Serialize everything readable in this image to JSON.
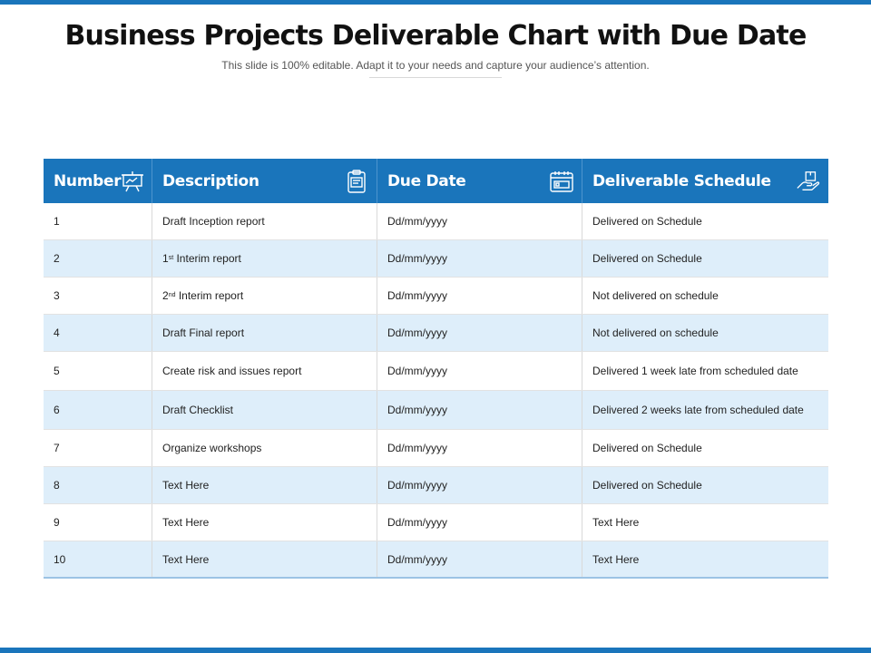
{
  "title": "Business Projects Deliverable Chart with Due Date",
  "subtitle": "This slide is 100% editable. Adapt it to your needs and capture your audience’s attention.",
  "colors": {
    "accent": "#1a75bb",
    "alt_row": "#deeefa"
  },
  "table": {
    "headers": [
      {
        "label": "Number",
        "icon": "presentation-board-icon"
      },
      {
        "label": "Description",
        "icon": "clipboard-icon"
      },
      {
        "label": "Due Date",
        "icon": "calendar-icon"
      },
      {
        "label": "Deliverable  Schedule",
        "icon": "delivery-hand-icon"
      }
    ],
    "rows": [
      {
        "number": "1",
        "description": "Draft Inception report",
        "due_date": "Dd/mm/yyyy",
        "schedule": "Delivered on Schedule"
      },
      {
        "number": "2",
        "desc_pre": "1",
        "desc_sup": "st",
        "desc_post": " Interim report",
        "due_date": "Dd/mm/yyyy",
        "schedule": "Delivered on Schedule"
      },
      {
        "number": "3",
        "desc_pre": "2",
        "desc_sup": "nd",
        "desc_post": " Interim report",
        "due_date": "Dd/mm/yyyy",
        "schedule": "Not delivered on schedule"
      },
      {
        "number": "4",
        "description": "Draft Final report",
        "due_date": "Dd/mm/yyyy",
        "schedule": "Not delivered on schedule"
      },
      {
        "number": "5",
        "description": "Create risk and issues report",
        "due_date": "Dd/mm/yyyy",
        "schedule": "Delivered 1 week late from scheduled date"
      },
      {
        "number": "6",
        "description": "Draft Checklist",
        "due_date": "Dd/mm/yyyy",
        "schedule": "Delivered 2 weeks late from scheduled date"
      },
      {
        "number": "7",
        "description": "Organize workshops",
        "due_date": "Dd/mm/yyyy",
        "schedule": "Delivered on Schedule"
      },
      {
        "number": "8",
        "description": "Text Here",
        "due_date": "Dd/mm/yyyy",
        "schedule": "Delivered on Schedule"
      },
      {
        "number": "9",
        "description": "Text Here",
        "due_date": "Dd/mm/yyyy",
        "schedule": "Text Here"
      },
      {
        "number": "10",
        "description": "Text Here",
        "due_date": "Dd/mm/yyyy",
        "schedule": "Text Here"
      }
    ]
  }
}
